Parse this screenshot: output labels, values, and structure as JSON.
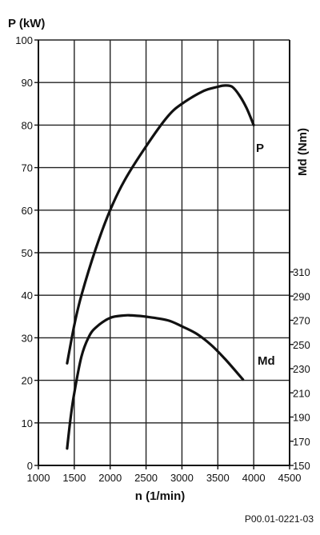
{
  "chart_data": {
    "type": "line",
    "x_axis": {
      "label": "n (1/min)",
      "range": [
        1000,
        4500
      ],
      "ticks": [
        1000,
        1500,
        2000,
        2500,
        3000,
        3500,
        4000,
        4500
      ]
    },
    "y_left": {
      "label": "P (kW)",
      "range": [
        0,
        100
      ],
      "ticks": [
        0,
        10,
        20,
        30,
        40,
        50,
        60,
        70,
        80,
        90,
        100
      ]
    },
    "y_right": {
      "label": "Md (Nm)",
      "range": [
        150,
        310
      ],
      "ticks": [
        150,
        170,
        190,
        210,
        230,
        250,
        270,
        290,
        310
      ]
    },
    "grid": true,
    "series": [
      {
        "name": "P",
        "axis": "left",
        "color": "#111111",
        "x": [
          1400,
          1500,
          1600,
          1800,
          2000,
          2200,
          2500,
          2800,
          3000,
          3300,
          3500,
          3600,
          3700,
          3800,
          3900,
          4000
        ],
        "y": [
          24,
          33,
          40,
          51,
          60,
          67,
          75,
          82,
          85,
          88,
          89,
          89.3,
          89,
          87,
          84,
          80
        ]
      },
      {
        "name": "Md",
        "axis": "right",
        "color": "#111111",
        "x": [
          1400,
          1450,
          1500,
          1600,
          1700,
          1800,
          2000,
          2200,
          2300,
          2500,
          2800,
          3000,
          3200,
          3400,
          3600,
          3850
        ],
        "y": [
          164,
          190,
          210,
          240,
          256,
          264,
          272,
          274,
          274,
          273,
          270,
          265,
          259,
          250,
          238,
          221
        ]
      }
    ]
  },
  "footer": {
    "code": "P00.01-0221-03"
  }
}
